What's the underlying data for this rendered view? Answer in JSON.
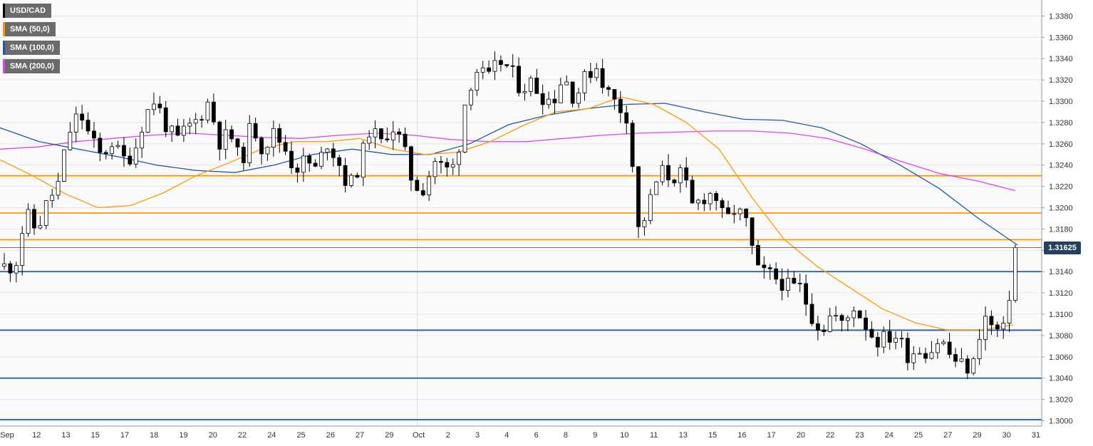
{
  "chart_data": {
    "type": "candlestick",
    "symbol": "USD/CAD",
    "x_labels": [
      "Sep",
      "12",
      "13",
      "15",
      "17",
      "18",
      "19",
      "20",
      "22",
      "24",
      "25",
      "26",
      "27",
      "29",
      "Oct",
      "2",
      "3",
      "4",
      "6",
      "8",
      "9",
      "10",
      "11",
      "13",
      "15",
      "16",
      "17",
      "20",
      "22",
      "23",
      "24",
      "25",
      "27",
      "29",
      "30",
      "31"
    ],
    "y_ticks": [
      "1.3000",
      "1.3020",
      "1.3040",
      "1.3060",
      "1.3080",
      "1.3100",
      "1.3120",
      "1.3140",
      "1.3160",
      "1.3180",
      "1.3200",
      "1.3220",
      "1.3240",
      "1.3260",
      "1.3280",
      "1.3300",
      "1.3320",
      "1.3340",
      "1.3360",
      "1.3380"
    ],
    "ylim": [
      1.2995,
      1.3395
    ],
    "grid": true,
    "legend_placement": "top-left",
    "current_price": "1.31625",
    "current_value": 1.31625,
    "price_path": [
      1.3145,
      1.3145,
      1.3195,
      1.3178,
      1.3205,
      1.3222,
      1.327,
      1.329,
      1.3265,
      1.3248,
      1.3262,
      1.3245,
      1.325,
      1.3285,
      1.3302,
      1.3278,
      1.3262,
      1.3275,
      1.3283,
      1.33,
      1.3262,
      1.327,
      1.324,
      1.328,
      1.3255,
      1.327,
      1.3258,
      1.3236,
      1.3245,
      1.3235,
      1.3262,
      1.3245,
      1.3218,
      1.324,
      1.3275,
      1.326,
      1.3278,
      1.326,
      1.3222,
      1.3218,
      1.3245,
      1.3235,
      1.324,
      1.331,
      1.333,
      1.332,
      1.3338,
      1.333,
      1.3312,
      1.3318,
      1.3305,
      1.33,
      1.3325,
      1.3302,
      1.3322,
      1.3334,
      1.331,
      1.3296,
      1.3285,
      1.3175,
      1.3205,
      1.3235,
      1.3228,
      1.3232,
      1.32,
      1.321,
      1.3215,
      1.3185,
      1.32,
      1.3185,
      1.314,
      1.3138,
      1.3132,
      1.3125,
      1.3125,
      1.31,
      1.3085,
      1.3102,
      1.3088,
      1.3108,
      1.3092,
      1.3075,
      1.3078,
      1.308,
      1.3062,
      1.3068,
      1.3064,
      1.3078,
      1.306,
      1.3052,
      1.3048,
      1.31,
      1.3085,
      1.3084,
      1.3162
    ],
    "sma50_path": [
      1.3245,
      1.323,
      1.3213,
      1.32,
      1.3202,
      1.3214,
      1.323,
      1.3242,
      1.3255,
      1.3262,
      1.3262,
      1.3265,
      1.3255,
      1.325,
      1.3252,
      1.3262,
      1.3277,
      1.329,
      1.3293,
      1.3304,
      1.3297,
      1.328,
      1.3255,
      1.321,
      1.317,
      1.3145,
      1.3125,
      1.3105,
      1.3092,
      1.3085,
      1.3085,
      1.309
    ],
    "sma100_path": [
      1.3275,
      1.3262,
      1.3255,
      1.3248,
      1.324,
      1.3235,
      1.3233,
      1.324,
      1.325,
      1.3255,
      1.325,
      1.325,
      1.326,
      1.3278,
      1.3287,
      1.3293,
      1.3297,
      1.3298,
      1.329,
      1.3283,
      1.3282,
      1.3275,
      1.326,
      1.324,
      1.3218,
      1.319,
      1.3165
    ],
    "sma200_path": [
      1.3255,
      1.3257,
      1.3262,
      1.3265,
      1.3268,
      1.327,
      1.3268,
      1.3266,
      1.3265,
      1.3268,
      1.327,
      1.3268,
      1.3264,
      1.3262,
      1.3262,
      1.3265,
      1.3268,
      1.327,
      1.3271,
      1.3272,
      1.3272,
      1.327,
      1.3265,
      1.3255,
      1.3243,
      1.3232,
      1.3225,
      1.3216
    ],
    "horizontal_levels": [
      {
        "value": 1.323,
        "color": "#ff9800"
      },
      {
        "value": 1.3195,
        "color": "#ff9800"
      },
      {
        "value": 1.317,
        "color": "#ff9800"
      },
      {
        "value": 1.314,
        "color": "#1f5aa8"
      },
      {
        "value": 1.3085,
        "color": "#1f5aa8"
      },
      {
        "value": 1.304,
        "color": "#1f5aa8"
      },
      {
        "value": 1.3001,
        "color": "#1f5aa8"
      }
    ],
    "series": [
      {
        "name": "USD/CAD",
        "color": "#000000"
      },
      {
        "name": "SMA (50,0)",
        "color": "#ff9800"
      },
      {
        "name": "SMA (100,0)",
        "color": "#1f5aa8"
      },
      {
        "name": "SMA (200,0)",
        "color": "#e040fb"
      }
    ]
  }
}
